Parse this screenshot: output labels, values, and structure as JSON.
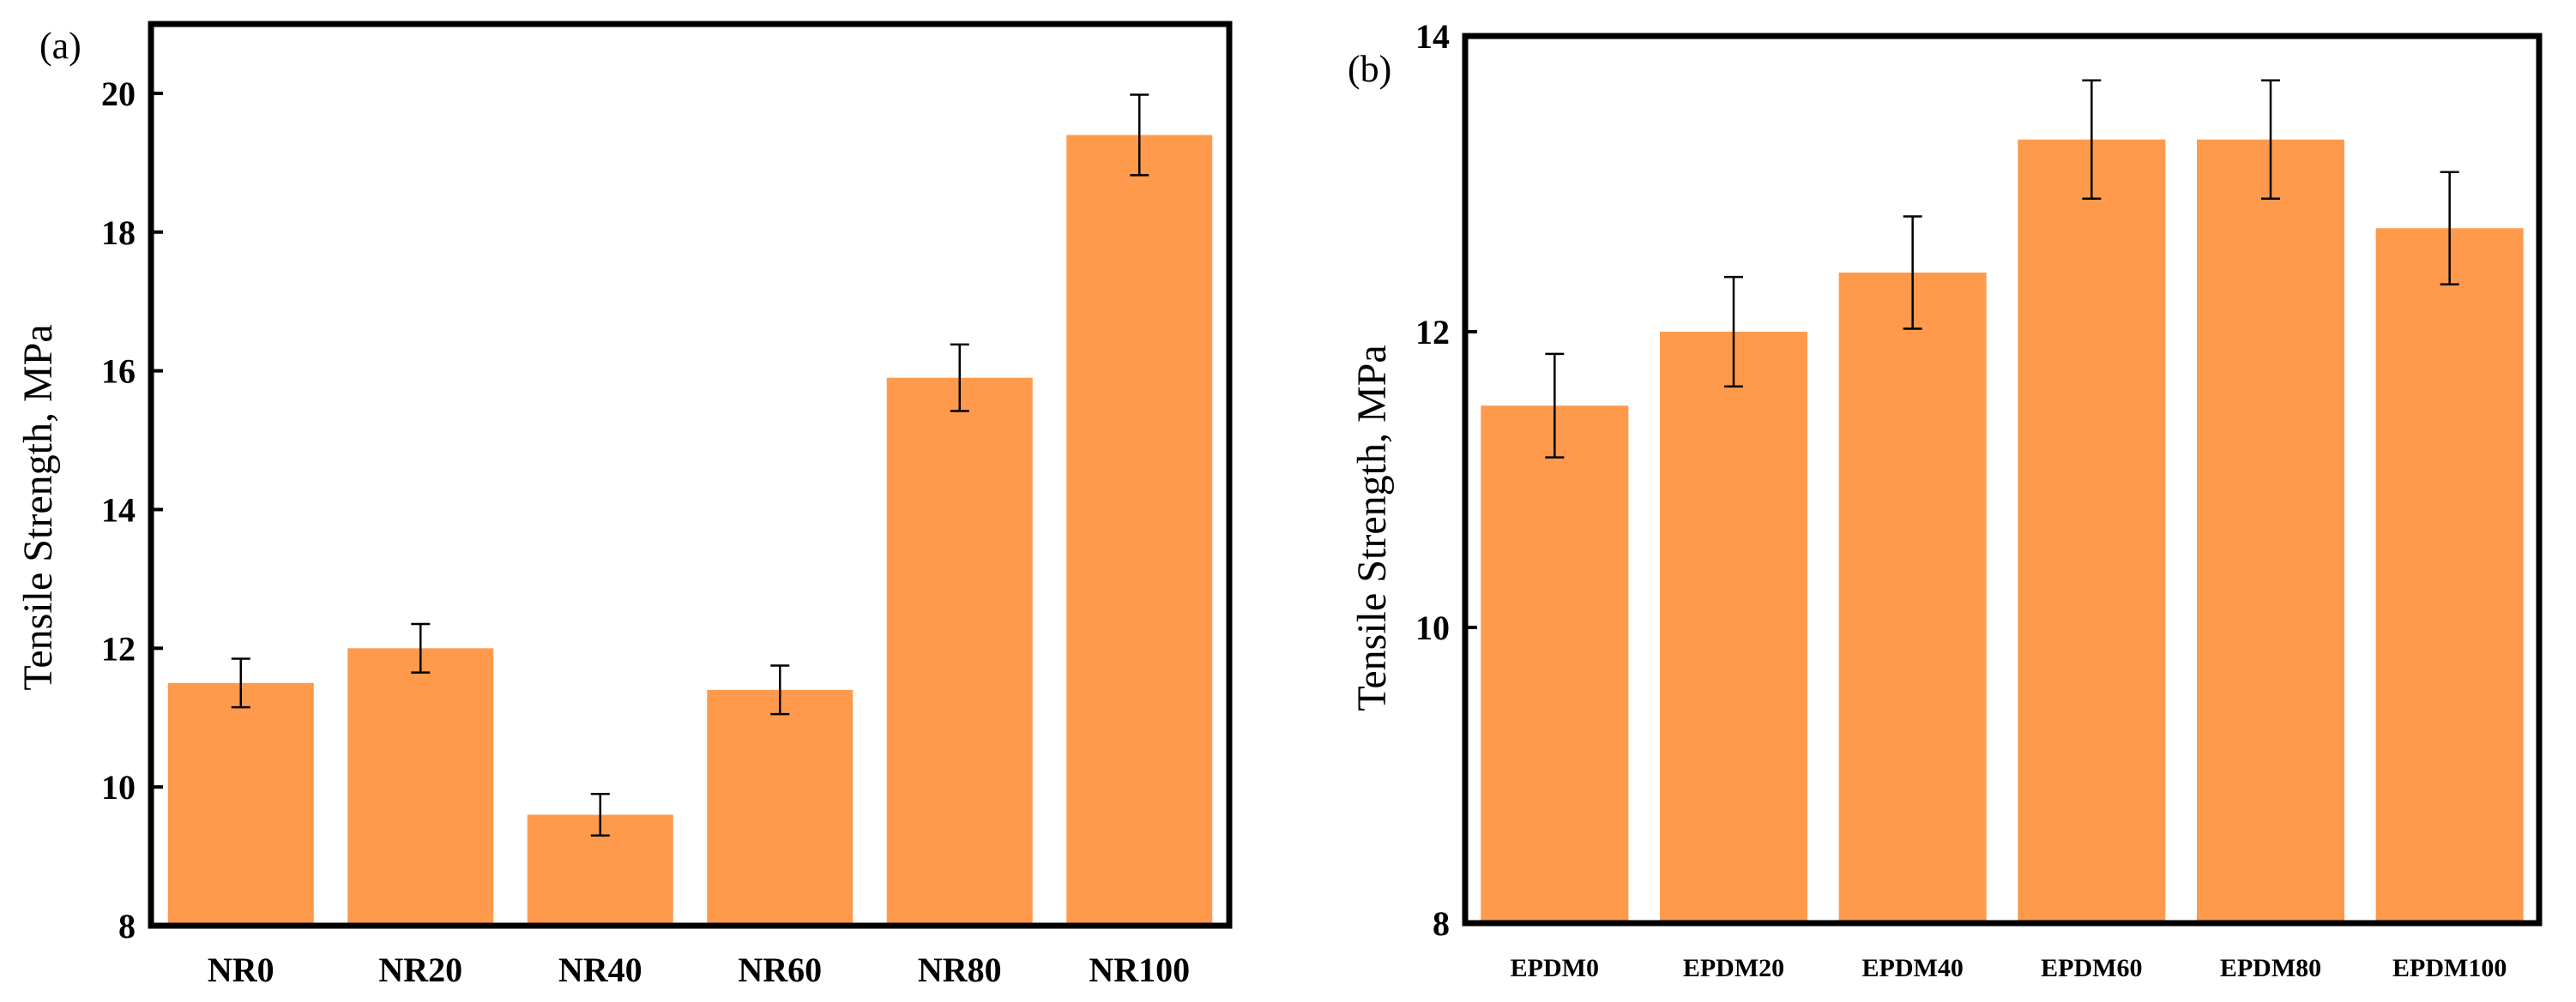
{
  "colors": {
    "bar": "#FF9A4C",
    "axis": "#000000",
    "errorbar": "#000000"
  },
  "chart_data": [
    {
      "type": "bar",
      "panel_label": "(a)",
      "title": "",
      "xlabel": "",
      "ylabel": "Tensile Strength, MPa",
      "ylim": [
        8,
        21
      ],
      "yticks": [
        8,
        10,
        12,
        14,
        16,
        18,
        20
      ],
      "categories": [
        "NR0",
        "NR20",
        "NR40",
        "NR60",
        "NR80",
        "NR100"
      ],
      "values": [
        11.5,
        12.0,
        9.6,
        11.4,
        15.9,
        19.4
      ],
      "errors": [
        0.35,
        0.35,
        0.3,
        0.35,
        0.48,
        0.58
      ],
      "grid": false
    },
    {
      "type": "bar",
      "panel_label": "(b)",
      "title": "",
      "xlabel": "",
      "ylabel": "Tensile Strength, MPa",
      "ylim": [
        8,
        14
      ],
      "yticks": [
        8,
        10,
        12,
        14
      ],
      "categories": [
        "EPDM0",
        "EPDM20",
        "EPDM40",
        "EPDM60",
        "EPDM80",
        "EPDM100"
      ],
      "values": [
        11.5,
        12.0,
        12.4,
        13.3,
        13.3,
        12.7
      ],
      "errors": [
        0.35,
        0.37,
        0.38,
        0.4,
        0.4,
        0.38
      ],
      "grid": false
    }
  ]
}
